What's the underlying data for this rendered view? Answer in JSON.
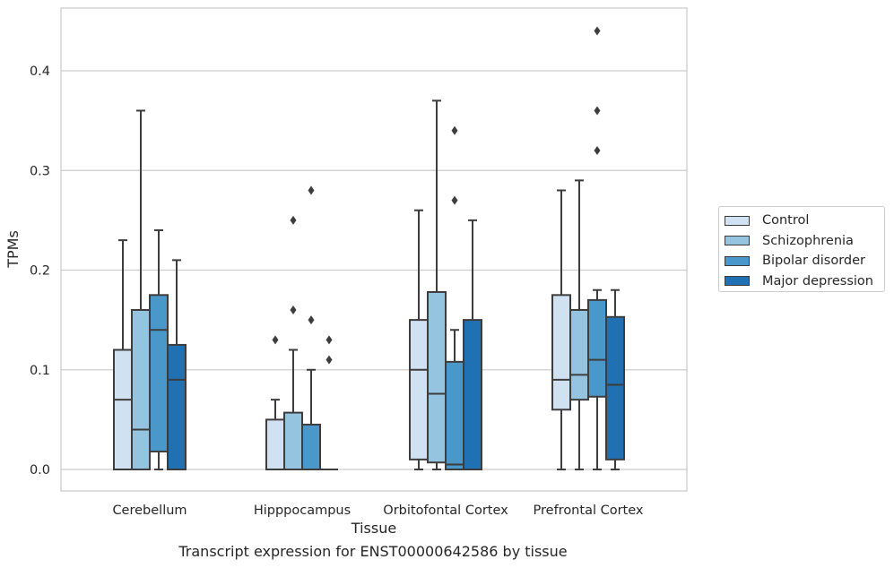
{
  "chart_data": {
    "type": "box",
    "title": "",
    "xlabel": "Tissue",
    "ylabel": "TPMs",
    "ylim": [
      -0.021,
      0.465
    ],
    "yticks": [
      0.0,
      0.1,
      0.2,
      0.3,
      0.4
    ],
    "ytick_labels": [
      "0.0",
      "0.1",
      "0.2",
      "0.3",
      "0.4"
    ],
    "grid": "horizontal",
    "legend_position": "right",
    "categories": [
      "Cerebellum",
      "Hipppocampus",
      "Orbitofontal Cortex",
      "Prefrontal Cortex"
    ],
    "series": [
      {
        "name": "Control",
        "color": "#d0e1f2",
        "boxes": [
          {
            "min": 0.0,
            "q1": 0.0,
            "median": 0.07,
            "q3": 0.12,
            "max": 0.23,
            "outliers": []
          },
          {
            "min": 0.0,
            "q1": 0.0,
            "median": 0.0,
            "q3": 0.05,
            "max": 0.07,
            "outliers": [
              0.13
            ]
          },
          {
            "min": 0.0,
            "q1": 0.01,
            "median": 0.1,
            "q3": 0.15,
            "max": 0.26,
            "outliers": []
          },
          {
            "min": 0.0,
            "q1": 0.06,
            "median": 0.09,
            "q3": 0.175,
            "max": 0.28,
            "outliers": []
          }
        ]
      },
      {
        "name": "Schizophrenia",
        "color": "#94c4df",
        "boxes": [
          {
            "min": 0.0,
            "q1": 0.0,
            "median": 0.04,
            "q3": 0.16,
            "max": 0.36,
            "outliers": []
          },
          {
            "min": 0.0,
            "q1": 0.0,
            "median": 0.0,
            "q3": 0.057,
            "max": 0.12,
            "outliers": [
              0.16,
              0.25
            ]
          },
          {
            "min": 0.0,
            "q1": 0.007,
            "median": 0.076,
            "q3": 0.178,
            "max": 0.37,
            "outliers": []
          },
          {
            "min": 0.0,
            "q1": 0.07,
            "median": 0.095,
            "q3": 0.16,
            "max": 0.29,
            "outliers": []
          }
        ]
      },
      {
        "name": "Bipolar disorder",
        "color": "#4a98c9",
        "boxes": [
          {
            "min": 0.0,
            "q1": 0.018,
            "median": 0.14,
            "q3": 0.175,
            "max": 0.24,
            "outliers": []
          },
          {
            "min": 0.0,
            "q1": 0.0,
            "median": 0.0,
            "q3": 0.045,
            "max": 0.1,
            "outliers": [
              0.15,
              0.28
            ]
          },
          {
            "min": 0.0,
            "q1": 0.0,
            "median": 0.005,
            "q3": 0.108,
            "max": 0.14,
            "outliers": [
              0.27,
              0.34
            ]
          },
          {
            "min": 0.0,
            "q1": 0.073,
            "median": 0.11,
            "q3": 0.17,
            "max": 0.18,
            "outliers": [
              0.32,
              0.36,
              0.44
            ]
          }
        ]
      },
      {
        "name": "Major depression",
        "color": "#2070b4",
        "boxes": [
          {
            "min": 0.0,
            "q1": 0.0,
            "median": 0.09,
            "q3": 0.125,
            "max": 0.21,
            "outliers": []
          },
          {
            "min": 0.0,
            "q1": 0.0,
            "median": 0.0,
            "q3": 0.0,
            "max": 0.0,
            "outliers": [
              0.11,
              0.13
            ]
          },
          {
            "min": 0.0,
            "q1": 0.0,
            "median": 0.0,
            "q3": 0.15,
            "max": 0.25,
            "outliers": []
          },
          {
            "min": 0.0,
            "q1": 0.01,
            "median": 0.085,
            "q3": 0.153,
            "max": 0.18,
            "outliers": []
          }
        ]
      }
    ]
  },
  "caption": "Transcript expression for ENST00000642586 by tissue"
}
